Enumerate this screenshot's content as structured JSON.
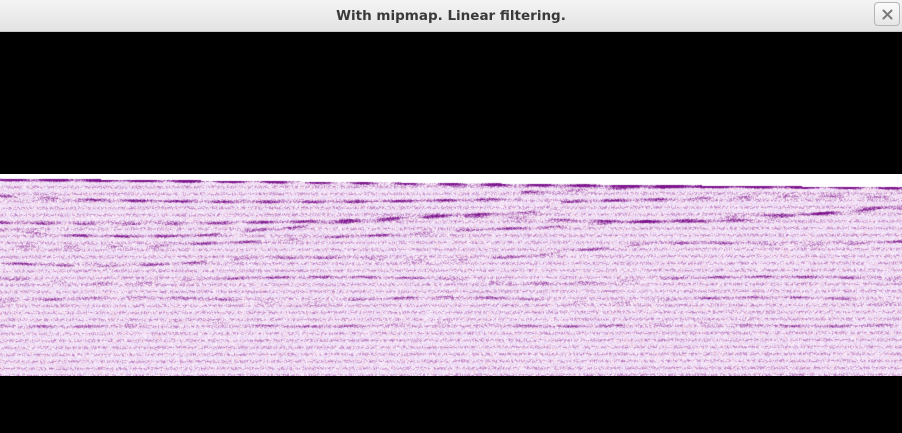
{
  "window": {
    "title": "With mipmap. Linear filtering.",
    "close_icon": "close-icon"
  },
  "viewport": {
    "background": "#000000",
    "image_tint": "#8a1a7e"
  }
}
